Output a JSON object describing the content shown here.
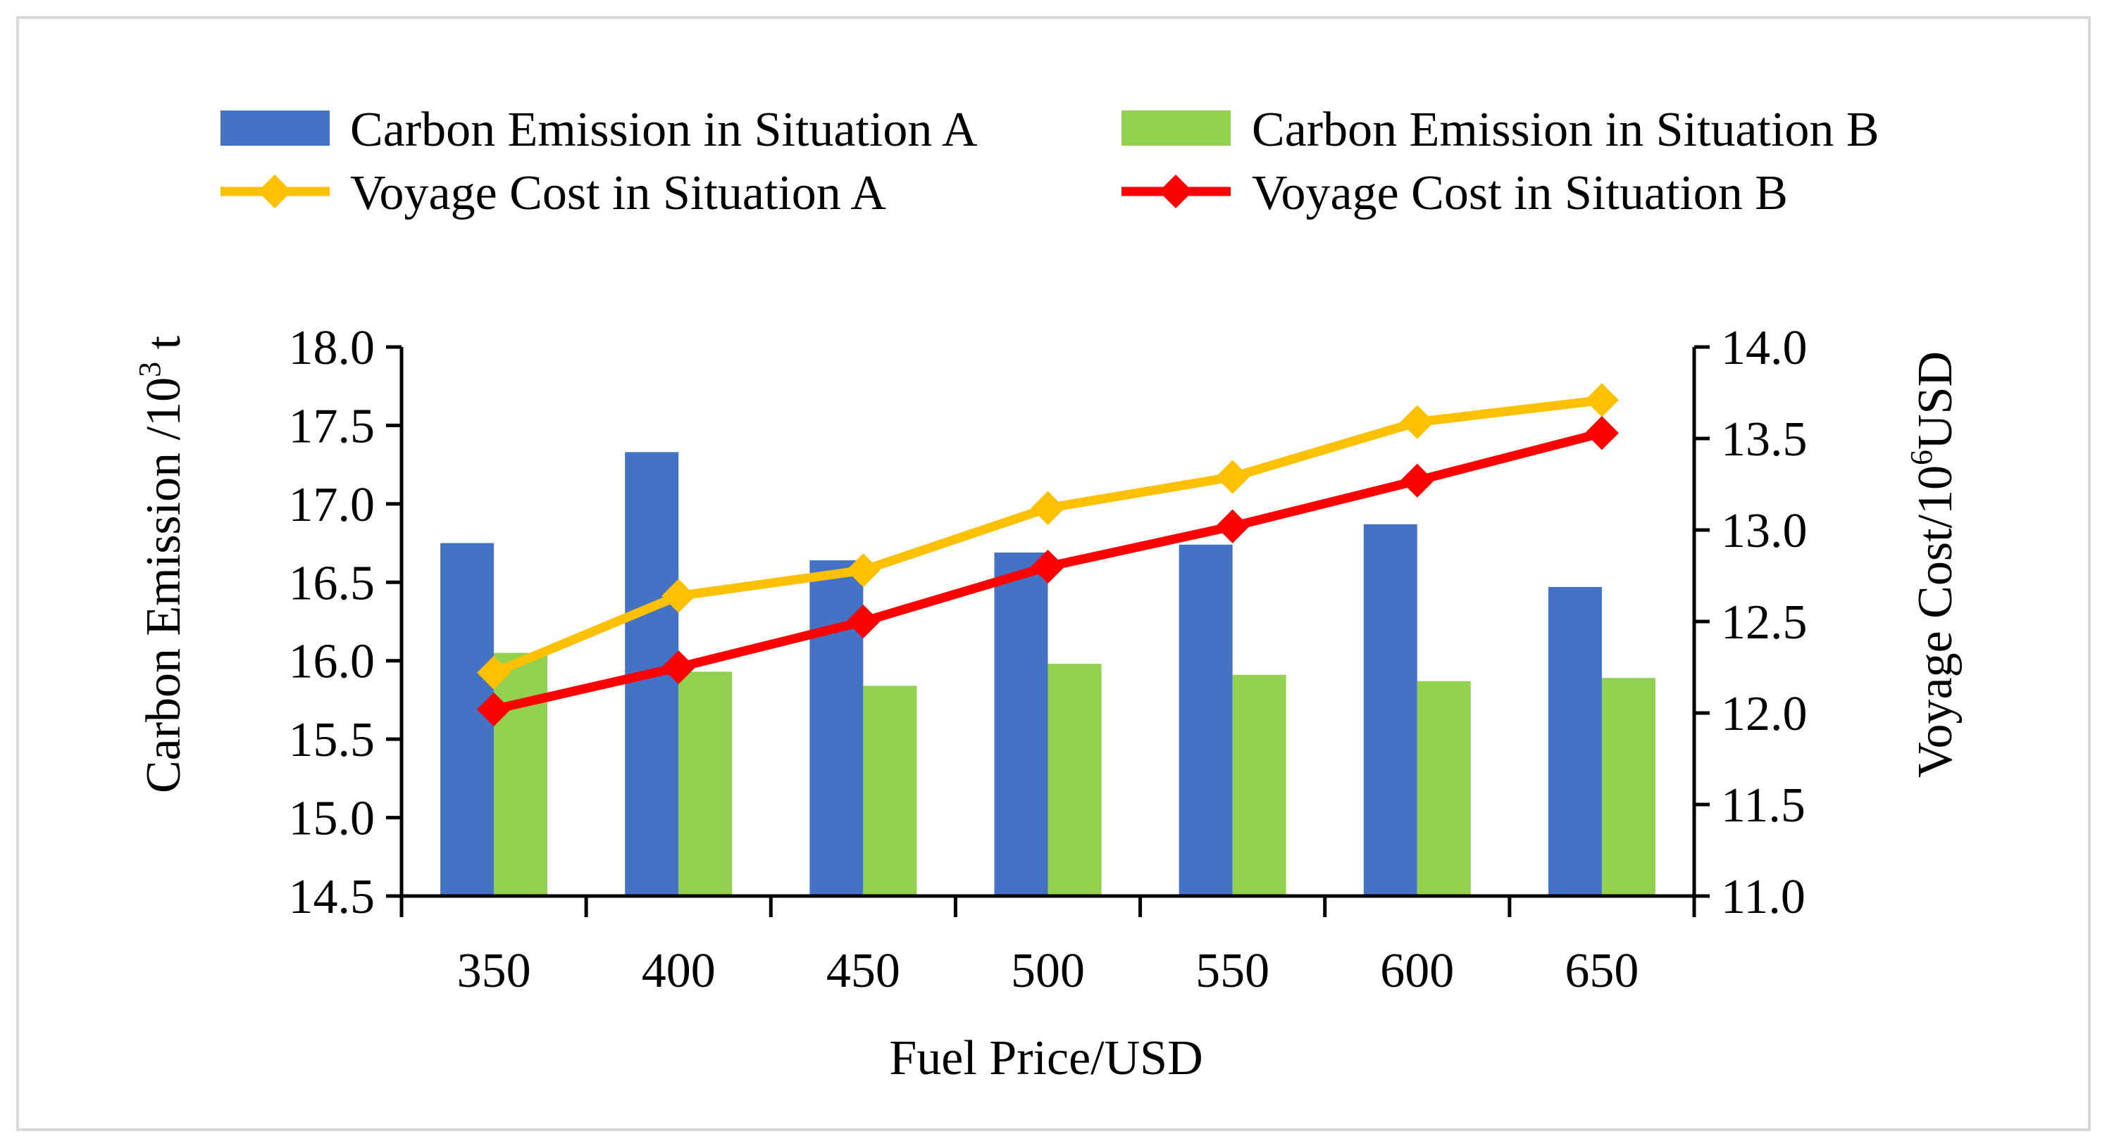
{
  "chart_data": {
    "type": "bar",
    "title": "",
    "xlabel": "Fuel Price/USD",
    "ylabel": "Carbon Emission /10³ t",
    "ylabel_parts": {
      "main": "Carbon Emission /10",
      "sup": "3",
      "tail": " t"
    },
    "y2label": "Voyage Cost/10⁶ USD",
    "y2label_parts": {
      "main": "Voyage Cost/10",
      "sup": "6",
      "tail": "USD"
    },
    "categories": [
      "350",
      "400",
      "450",
      "500",
      "550",
      "600",
      "650"
    ],
    "ylim": [
      14.5,
      18.0
    ],
    "yticks": [
      "14.5",
      "15.0",
      "15.5",
      "16.0",
      "16.5",
      "17.0",
      "17.5",
      "18.0"
    ],
    "y2lim": [
      11.0,
      14.0
    ],
    "y2ticks": [
      "11.0",
      "11.5",
      "12.0",
      "12.5",
      "13.0",
      "13.5",
      "14.0"
    ],
    "grid": false,
    "legend_position": "top",
    "series": [
      {
        "name": "Carbon Emission in Situation A",
        "type": "bar",
        "axis": "left",
        "color": "#4472C4",
        "values": [
          16.75,
          17.33,
          16.64,
          16.69,
          16.74,
          16.87,
          16.47
        ]
      },
      {
        "name": "Carbon Emission in Situation B",
        "type": "bar",
        "axis": "left",
        "color": "#92D050",
        "values": [
          16.05,
          15.93,
          15.84,
          15.98,
          15.91,
          15.87,
          15.89
        ]
      },
      {
        "name": "Voyage Cost in Situation A",
        "type": "line",
        "axis": "right",
        "color": "#FFC000",
        "values": [
          12.22,
          12.64,
          12.78,
          13.12,
          13.29,
          13.59,
          13.71
        ]
      },
      {
        "name": "Voyage Cost in Situation B",
        "type": "line",
        "axis": "right",
        "color": "#FF0000",
        "values": [
          12.02,
          12.25,
          12.5,
          12.8,
          13.02,
          13.27,
          13.53
        ]
      }
    ]
  }
}
